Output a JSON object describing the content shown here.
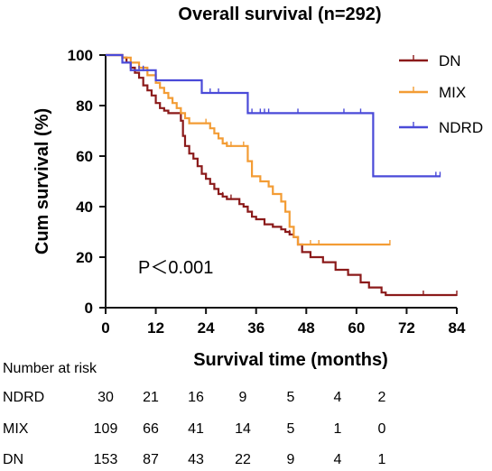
{
  "chart_data": {
    "type": "line",
    "subtype": "kaplan-meier",
    "title": "Overall survival (n=292)",
    "xlabel": "Survival time (months)",
    "ylabel": "Cum survival (%)",
    "xlim": [
      0,
      84
    ],
    "ylim": [
      0,
      100
    ],
    "xticks": [
      "0",
      "12",
      "24",
      "36",
      "48",
      "60",
      "72",
      "84"
    ],
    "yticks": [
      "0",
      "20",
      "40",
      "60",
      "80",
      "100"
    ],
    "annotation": "P＜0.001",
    "legend_position": "top-right",
    "series": [
      {
        "name": "DN",
        "color": "#8b1a1a",
        "steps": [
          [
            0,
            100
          ],
          [
            4,
            99
          ],
          [
            5,
            97
          ],
          [
            6,
            95
          ],
          [
            7,
            93
          ],
          [
            8,
            91
          ],
          [
            9,
            88
          ],
          [
            10,
            86
          ],
          [
            11,
            84
          ],
          [
            12,
            81
          ],
          [
            13,
            79
          ],
          [
            14,
            78
          ],
          [
            15,
            77
          ],
          [
            17,
            77
          ],
          [
            18,
            74
          ],
          [
            18.5,
            68
          ],
          [
            19,
            64
          ],
          [
            20,
            61
          ],
          [
            21,
            59
          ],
          [
            22,
            56
          ],
          [
            23,
            53
          ],
          [
            24,
            51
          ],
          [
            25,
            49
          ],
          [
            26,
            47
          ],
          [
            27,
            45
          ],
          [
            28,
            44
          ],
          [
            29,
            43
          ],
          [
            31,
            43
          ],
          [
            32,
            41
          ],
          [
            33,
            40
          ],
          [
            34,
            38
          ],
          [
            35,
            36
          ],
          [
            36,
            35
          ],
          [
            38,
            33
          ],
          [
            40,
            32
          ],
          [
            42,
            31
          ],
          [
            43,
            30
          ],
          [
            44,
            29
          ],
          [
            45,
            28
          ],
          [
            46,
            25
          ],
          [
            47,
            22
          ],
          [
            49,
            20
          ],
          [
            52,
            18
          ],
          [
            55,
            15
          ],
          [
            58,
            13
          ],
          [
            61,
            10
          ],
          [
            63,
            8
          ],
          [
            66,
            6
          ],
          [
            67,
            5
          ],
          [
            84,
            5
          ]
        ],
        "censor_times": [
          28,
          30,
          44,
          76,
          84
        ]
      },
      {
        "name": "MIX",
        "color": "#f39c34",
        "steps": [
          [
            0,
            100
          ],
          [
            4,
            99
          ],
          [
            6,
            97
          ],
          [
            8,
            95
          ],
          [
            10,
            92
          ],
          [
            12,
            89
          ],
          [
            13,
            87
          ],
          [
            14,
            85
          ],
          [
            15,
            83
          ],
          [
            16,
            81
          ],
          [
            17,
            79
          ],
          [
            18,
            77
          ],
          [
            19,
            75
          ],
          [
            20,
            73
          ],
          [
            25,
            71
          ],
          [
            26,
            69
          ],
          [
            27,
            67
          ],
          [
            28,
            65
          ],
          [
            29,
            64
          ],
          [
            33,
            64
          ],
          [
            34,
            58
          ],
          [
            35,
            52
          ],
          [
            37,
            50
          ],
          [
            39,
            48
          ],
          [
            40,
            45
          ],
          [
            42,
            42
          ],
          [
            43,
            38
          ],
          [
            44,
            32
          ],
          [
            45,
            28
          ],
          [
            46,
            25
          ],
          [
            68,
            25
          ]
        ],
        "censor_times": [
          14,
          24,
          29,
          30,
          33,
          49,
          51,
          68
        ]
      },
      {
        "name": "NDRD",
        "color": "#4a4ad8",
        "steps": [
          [
            0,
            100
          ],
          [
            4,
            97
          ],
          [
            6,
            94
          ],
          [
            12,
            90
          ],
          [
            23,
            85
          ],
          [
            34,
            77
          ],
          [
            63,
            77
          ],
          [
            64,
            52
          ],
          [
            80,
            52
          ]
        ],
        "censor_times": [
          8,
          9,
          23,
          25,
          27,
          35,
          37,
          38,
          39,
          46,
          57,
          61,
          79,
          80
        ]
      }
    ]
  },
  "risk_table": {
    "heading": "Number at risk",
    "rows": [
      {
        "label": "NDRD",
        "values": [
          "30",
          "21",
          "16",
          "9",
          "5",
          "4",
          "2"
        ]
      },
      {
        "label": "MIX",
        "values": [
          "109",
          "66",
          "41",
          "14",
          "5",
          "1",
          "0"
        ]
      },
      {
        "label": "DN",
        "values": [
          "153",
          "87",
          "43",
          "22",
          "9",
          "4",
          "1"
        ]
      }
    ]
  }
}
